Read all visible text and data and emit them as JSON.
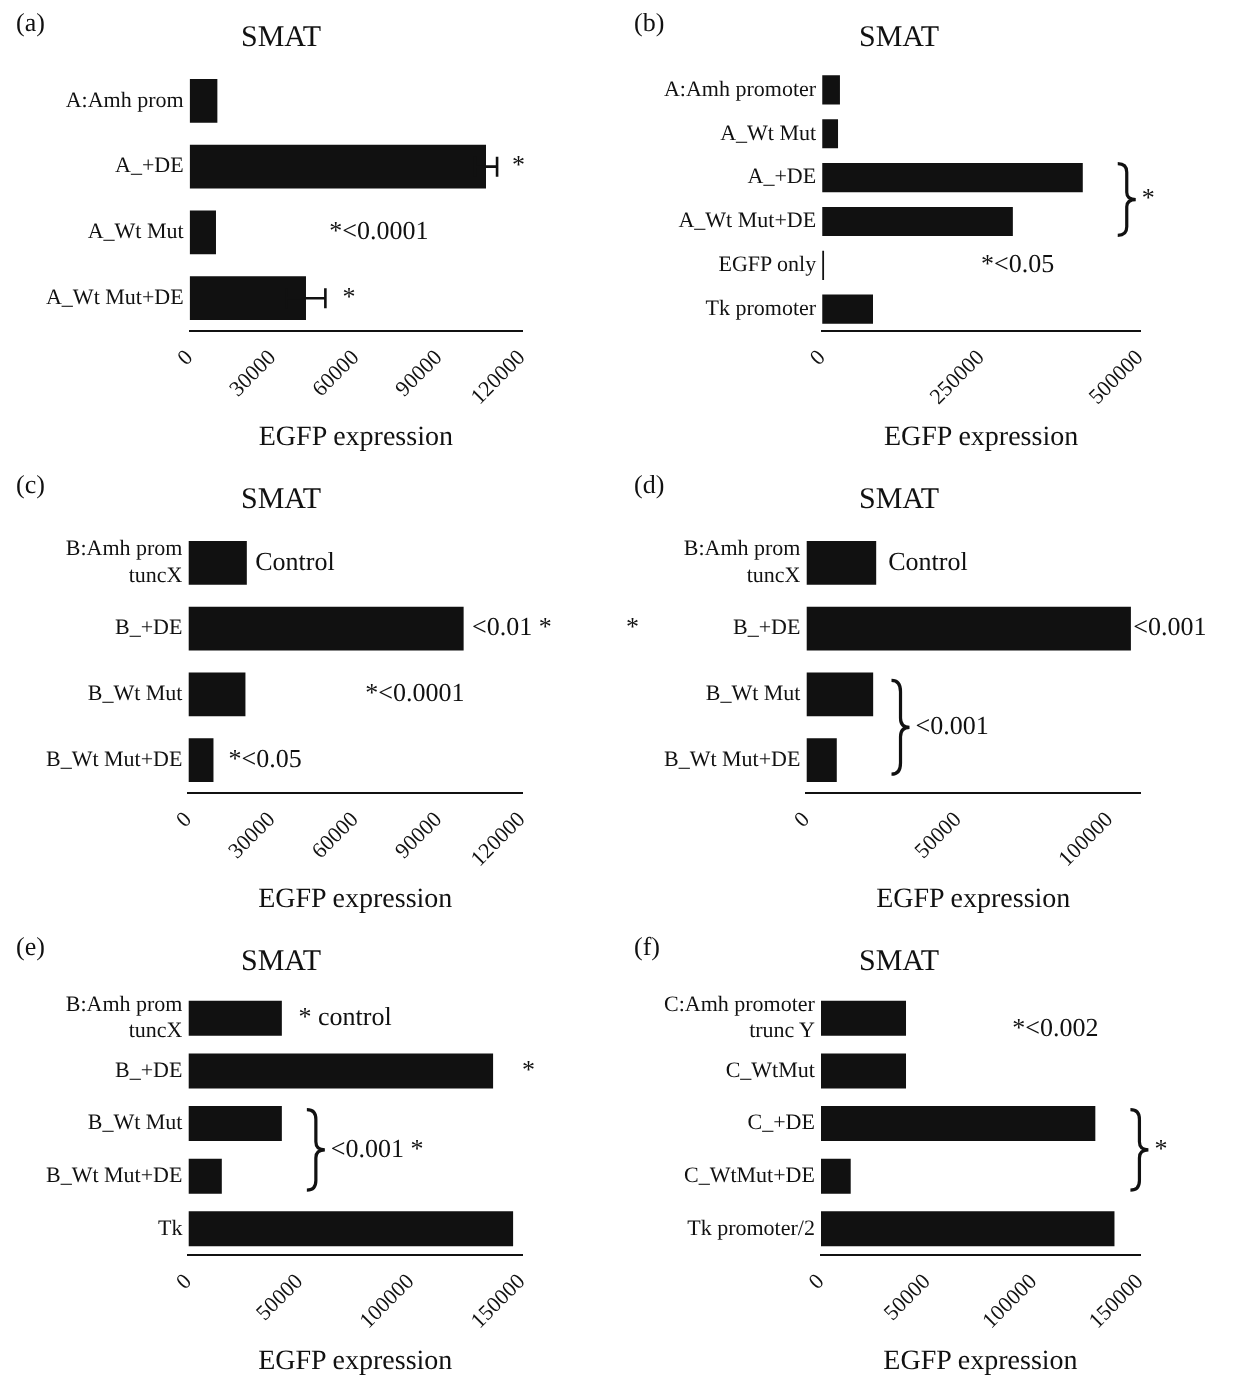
{
  "chart_data": [
    {
      "type": "bar",
      "orientation": "horizontal",
      "title": "SMAT",
      "xlabel": "EGFP expression",
      "categories": [
        "A:Amh prom",
        "A_+DE",
        "A_Wt Mut",
        "A_Wt Mut+DE"
      ],
      "values": [
        10000,
        107000,
        9500,
        42000
      ],
      "errors": [
        null,
        4000,
        null,
        7000
      ],
      "color": "#111111",
      "xlim": [
        0,
        120000
      ],
      "xticks": [
        0,
        30000,
        60000,
        90000,
        120000
      ],
      "grid": false,
      "annotations": [
        "(a)",
        "*",
        "*<0.0001",
        "*"
      ]
    },
    {
      "type": "bar",
      "orientation": "horizontal",
      "title": "SMAT",
      "xlabel": "EGFP expression",
      "categories": [
        "A:Amh promoter",
        "A_Wt Mut",
        "A_+DE",
        "A_Wt Mut+DE",
        "EGFP only",
        "Tk promoter"
      ],
      "values": [
        28000,
        25000,
        410000,
        300000,
        3000,
        80000
      ],
      "color": "#111111",
      "xlim": [
        0,
        500000
      ],
      "xticks": [
        0,
        250000,
        500000
      ],
      "grid": false,
      "annotations": [
        "(b)",
        "*",
        "*<0.05"
      ]
    },
    {
      "type": "bar",
      "orientation": "horizontal",
      "title": "SMAT",
      "xlabel": "EGFP expression",
      "categories": [
        "B:Amh prom tuncX",
        "B_+DE",
        "B_Wt Mut",
        "B_Wt Mut+DE"
      ],
      "values": [
        21000,
        99000,
        20500,
        9000
      ],
      "color": "#111111",
      "xlim": [
        0,
        120000
      ],
      "xticks": [
        0,
        30000,
        60000,
        90000,
        120000
      ],
      "grid": false,
      "annotations": [
        "(c)",
        "Control",
        "<0.01 *",
        "*<0.0001",
        "*<0.05"
      ]
    },
    {
      "type": "bar",
      "orientation": "horizontal",
      "title": "SMAT",
      "xlabel": "EGFP expression",
      "categories": [
        "B:Amh prom tuncX",
        "B_+DE",
        "B_Wt Mut",
        "B_Wt Mut+DE"
      ],
      "values": [
        23000,
        107000,
        22000,
        10000
      ],
      "color": "#111111",
      "xlim": [
        0,
        110000
      ],
      "xticks": [
        0,
        50000,
        100000
      ],
      "grid": false,
      "annotations": [
        "(d)",
        "Control",
        "<0.001",
        "*",
        "<0.001"
      ]
    },
    {
      "type": "bar",
      "orientation": "horizontal",
      "title": "SMAT",
      "xlabel": "EGFP expression",
      "categories": [
        "B:Amh prom tuncX",
        "B_+DE",
        "B_Wt Mut",
        "B_Wt Mut+DE",
        "Tk"
      ],
      "values": [
        42000,
        137000,
        42000,
        15000,
        146000
      ],
      "color": "#111111",
      "xlim": [
        0,
        150000
      ],
      "xticks": [
        0,
        50000,
        100000,
        150000
      ],
      "grid": false,
      "annotations": [
        "(e)",
        "* control",
        "*",
        "<0.001 *"
      ]
    },
    {
      "type": "bar",
      "orientation": "horizontal",
      "title": "SMAT",
      "xlabel": "EGFP expression",
      "categories": [
        "C:Amh promoter trunc Y",
        "C_WtMut",
        "C_+DE",
        "C_WtMut+DE",
        "Tk promoter/2"
      ],
      "values": [
        40000,
        40000,
        129000,
        14000,
        138000
      ],
      "color": "#111111",
      "xlim": [
        0,
        150000
      ],
      "xticks": [
        0,
        50000,
        100000,
        150000
      ],
      "grid": false,
      "annotations": [
        "(f)",
        "*<0.002",
        "*"
      ]
    }
  ]
}
